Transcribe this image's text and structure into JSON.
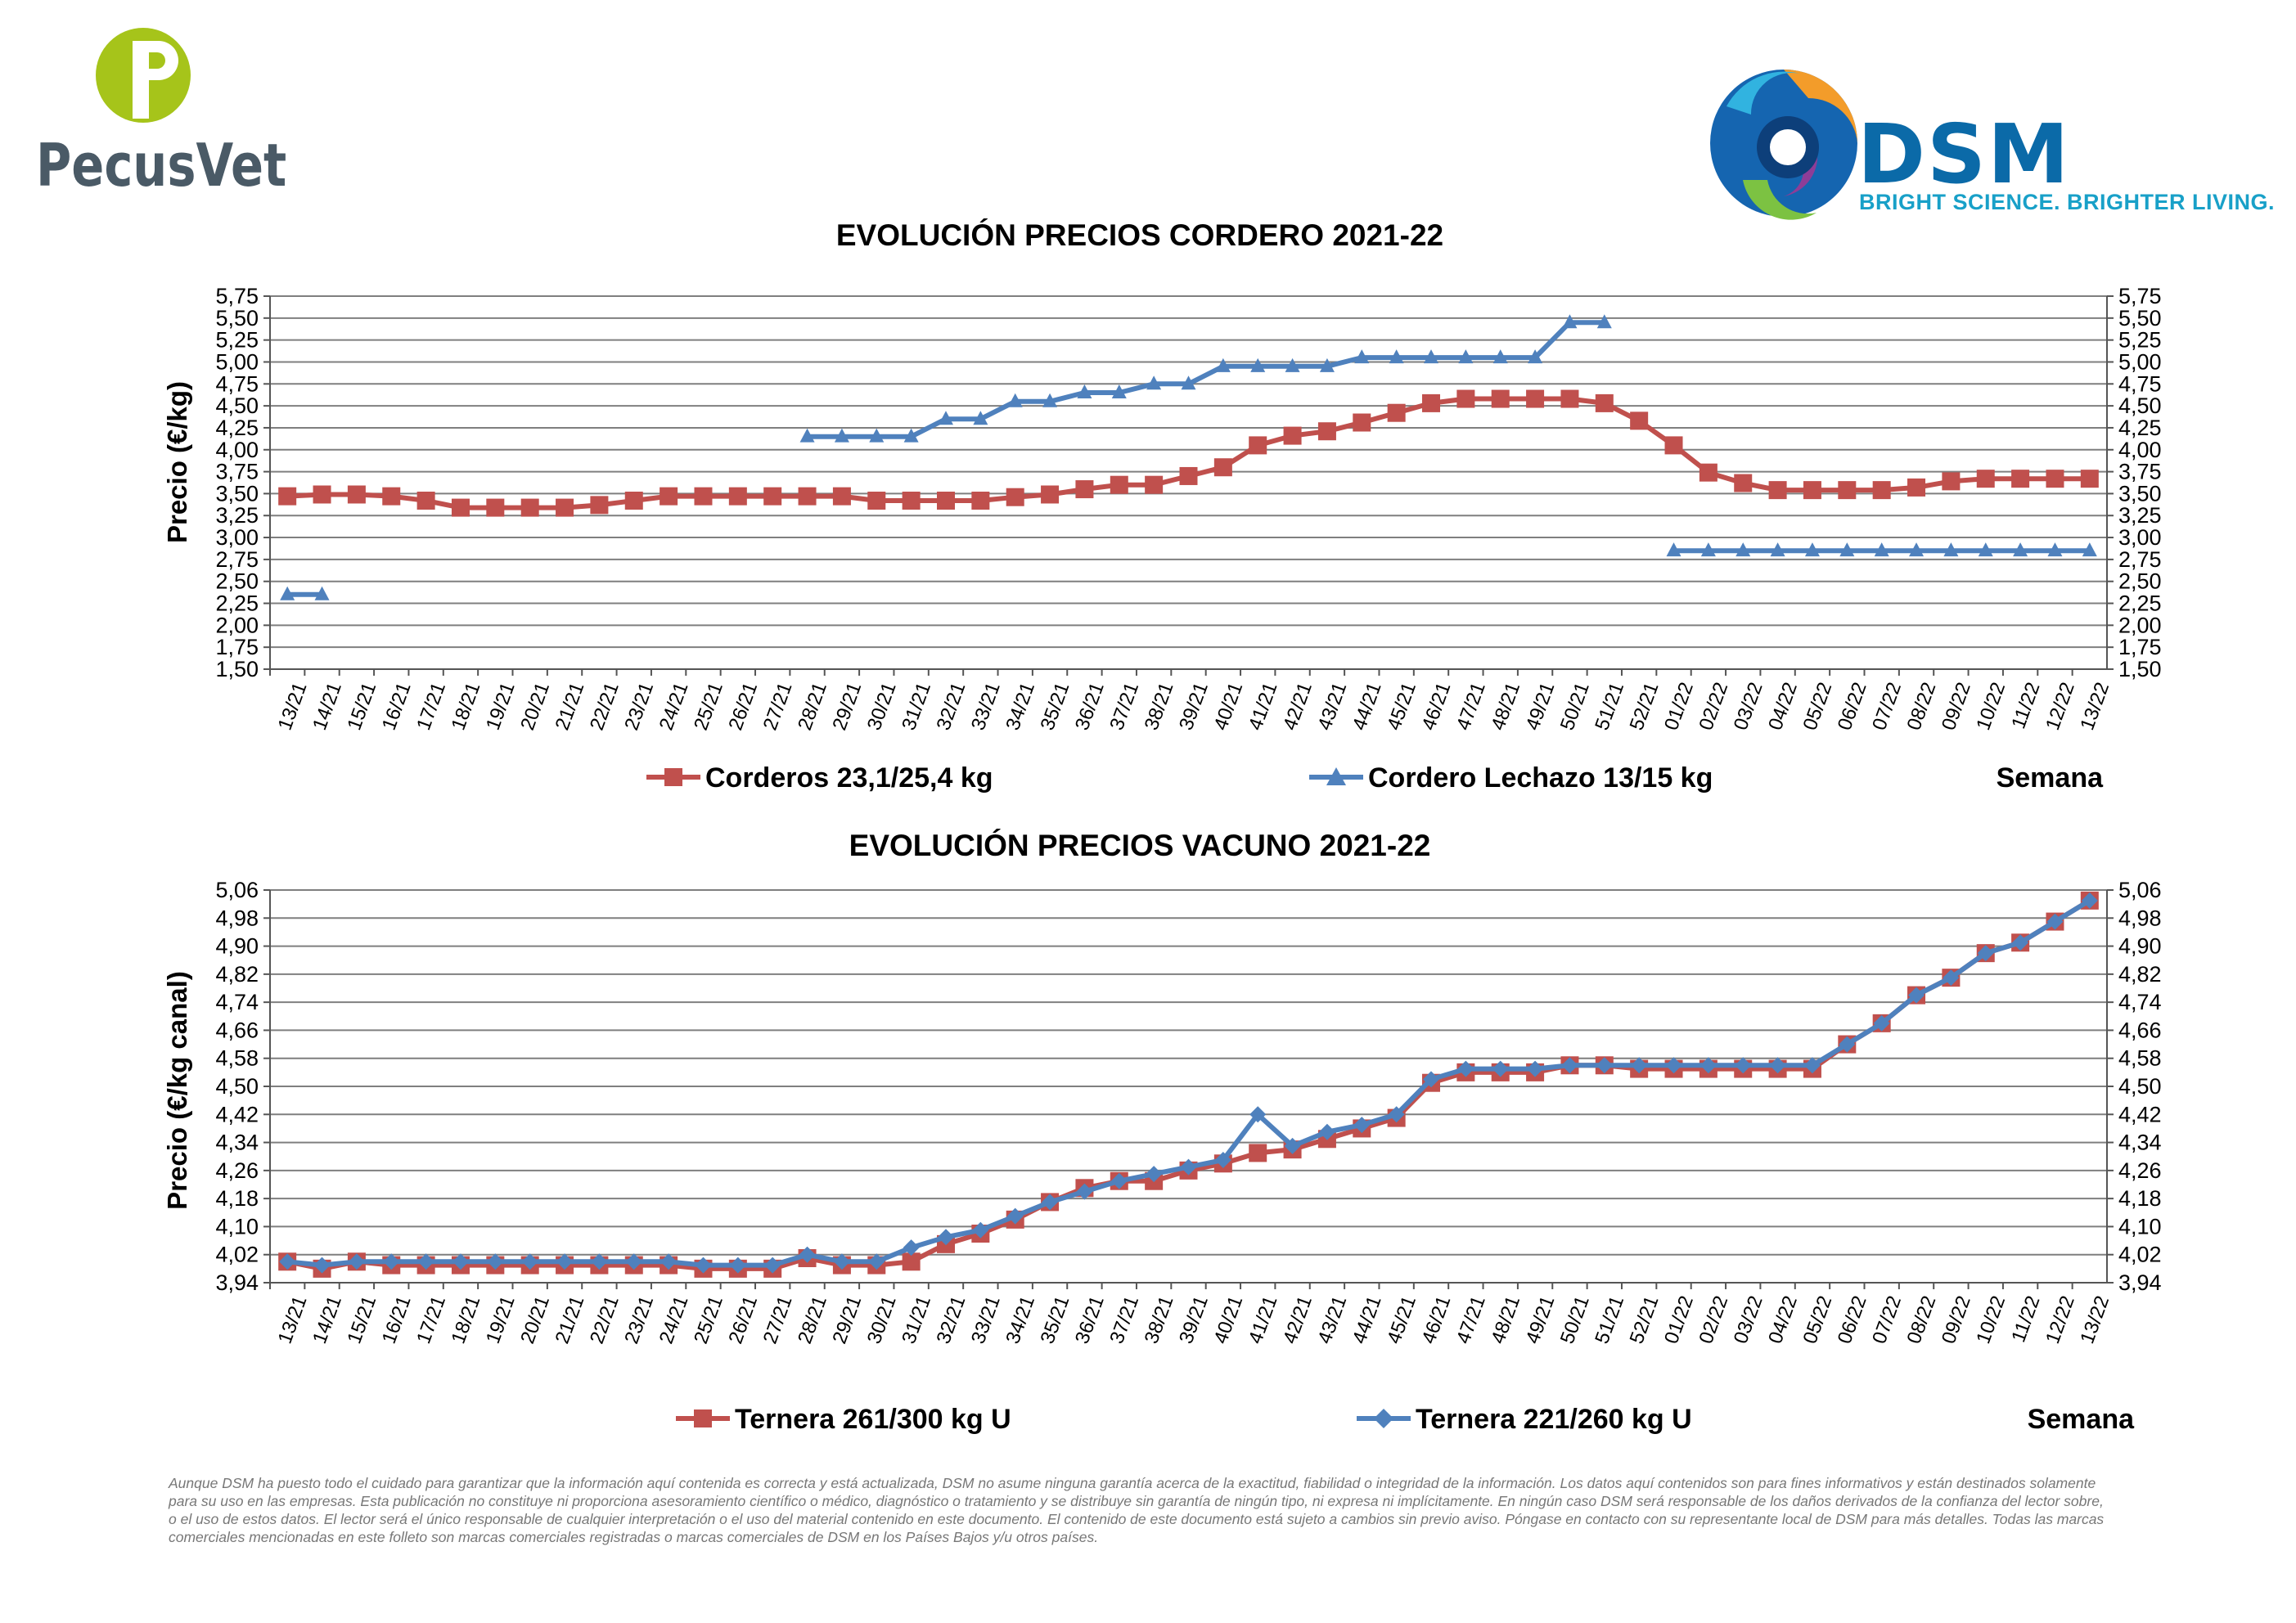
{
  "logos": {
    "left_brand": "PecusVet",
    "right_brand": "DSM",
    "right_tagline": "BRIGHT SCIENCE. BRIGHTER LIVING.",
    "pecus_green": "#a6c41a",
    "dsm_blue": "#0b6aa8"
  },
  "colors": {
    "red_series": "#c0504d",
    "blue_series": "#4f81bd",
    "grid": "#7f7f7f"
  },
  "chart_data": [
    {
      "type": "line",
      "title": "EVOLUCIÓN PRECIOS CORDERO 2021-22",
      "ylabel": "Precio (€/kg)",
      "xlabel": "Semana",
      "ylim": [
        1.5,
        5.75
      ],
      "yticks": [
        "5,75",
        "5,50",
        "5,25",
        "5,00",
        "4,75",
        "4,50",
        "4,25",
        "4,00",
        "3,75",
        "3,50",
        "3,25",
        "3,00",
        "2,75",
        "2,50",
        "2,25",
        "2,00",
        "1,75",
        "1,50"
      ],
      "categories": [
        "13/21",
        "14/21",
        "15/21",
        "16/21",
        "17/21",
        "18/21",
        "19/21",
        "20/21",
        "21/21",
        "22/21",
        "23/21",
        "24/21",
        "25/21",
        "26/21",
        "27/21",
        "28/21",
        "29/21",
        "30/21",
        "31/21",
        "32/21",
        "33/21",
        "34/21",
        "35/21",
        "36/21",
        "37/21",
        "38/21",
        "39/21",
        "40/21",
        "41/21",
        "42/21",
        "43/21",
        "44/21",
        "45/21",
        "46/21",
        "47/21",
        "48/21",
        "49/21",
        "50/21",
        "51/21",
        "52/21",
        "01/22",
        "02/22",
        "03/22",
        "04/22",
        "05/22",
        "06/22",
        "07/22",
        "08/22",
        "09/22",
        "10/22",
        "11/22",
        "12/22",
        "13/22"
      ],
      "grid": true,
      "legend_position": "bottom",
      "series": [
        {
          "name": "Corderos 23,1/25,4 kg",
          "marker": "square",
          "values": [
            3.47,
            3.49,
            3.49,
            3.47,
            3.42,
            3.34,
            3.34,
            3.34,
            3.34,
            3.37,
            3.42,
            3.47,
            3.47,
            3.47,
            3.47,
            3.47,
            3.47,
            3.42,
            3.42,
            3.42,
            3.42,
            3.46,
            3.49,
            3.55,
            3.6,
            3.6,
            3.7,
            3.8,
            4.05,
            4.16,
            4.21,
            4.31,
            4.42,
            4.53,
            4.58,
            4.58,
            4.58,
            4.58,
            4.53,
            4.33,
            4.05,
            3.74,
            3.62,
            3.54,
            3.54,
            3.54,
            3.54,
            3.57,
            3.64,
            3.67,
            3.67,
            3.67,
            3.67
          ]
        },
        {
          "name": "Cordero Lechazo 13/15 kg",
          "marker": "triangle",
          "values": [
            2.35,
            2.35,
            null,
            null,
            null,
            null,
            null,
            null,
            null,
            null,
            null,
            null,
            null,
            null,
            null,
            4.15,
            4.15,
            4.15,
            4.15,
            4.35,
            4.35,
            4.55,
            4.55,
            4.65,
            4.65,
            4.75,
            4.75,
            4.95,
            4.95,
            4.95,
            4.95,
            5.05,
            5.05,
            5.05,
            5.05,
            5.05,
            5.05,
            5.45,
            5.45,
            null,
            2.85,
            2.85,
            2.85,
            2.85,
            2.85,
            2.85,
            2.85,
            2.85,
            2.85,
            2.85,
            2.85,
            2.85,
            2.85
          ]
        }
      ]
    },
    {
      "type": "line",
      "title": "EVOLUCIÓN PRECIOS VACUNO 2021-22",
      "ylabel": "Precio (€/kg canal)",
      "xlabel": "Semana",
      "ylim": [
        3.94,
        5.06
      ],
      "yticks": [
        "5,06",
        "4,98",
        "4,90",
        "4,82",
        "4,74",
        "4,66",
        "4,58",
        "4,50",
        "4,42",
        "4,34",
        "4,26",
        "4,18",
        "4,10",
        "4,02",
        "3,94"
      ],
      "categories": [
        "13/21",
        "14/21",
        "15/21",
        "16/21",
        "17/21",
        "18/21",
        "19/21",
        "20/21",
        "21/21",
        "22/21",
        "23/21",
        "24/21",
        "25/21",
        "26/21",
        "27/21",
        "28/21",
        "29/21",
        "30/21",
        "31/21",
        "32/21",
        "33/21",
        "34/21",
        "35/21",
        "36/21",
        "37/21",
        "38/21",
        "39/21",
        "40/21",
        "41/21",
        "42/21",
        "43/21",
        "44/21",
        "45/21",
        "46/21",
        "47/21",
        "48/21",
        "49/21",
        "50/21",
        "51/21",
        "52/21",
        "01/22",
        "02/22",
        "03/22",
        "04/22",
        "05/22",
        "06/22",
        "07/22",
        "08/22",
        "09/22",
        "10/22",
        "11/22",
        "12/22",
        "13/22"
      ],
      "grid": true,
      "legend_position": "bottom",
      "series": [
        {
          "name": "Ternera 261/300 kg U",
          "marker": "square",
          "values": [
            4.0,
            3.98,
            4.0,
            3.99,
            3.99,
            3.99,
            3.99,
            3.99,
            3.99,
            3.99,
            3.99,
            3.99,
            3.98,
            3.98,
            3.98,
            4.01,
            3.99,
            3.99,
            4.0,
            4.05,
            4.08,
            4.12,
            4.17,
            4.21,
            4.23,
            4.23,
            4.26,
            4.28,
            4.31,
            4.32,
            4.35,
            4.38,
            4.41,
            4.51,
            4.54,
            4.54,
            4.54,
            4.56,
            4.56,
            4.55,
            4.55,
            4.55,
            4.55,
            4.55,
            4.55,
            4.62,
            4.68,
            4.76,
            4.81,
            4.88,
            4.91,
            4.97,
            5.03
          ]
        },
        {
          "name": "Ternera 221/260 kg U",
          "marker": "diamond",
          "values": [
            4.0,
            3.99,
            4.0,
            4.0,
            4.0,
            4.0,
            4.0,
            4.0,
            4.0,
            4.0,
            4.0,
            4.0,
            3.99,
            3.99,
            3.99,
            4.02,
            4.0,
            4.0,
            4.04,
            4.07,
            4.09,
            4.13,
            4.17,
            4.2,
            4.23,
            4.25,
            4.27,
            4.29,
            4.42,
            4.33,
            4.37,
            4.39,
            4.42,
            4.52,
            4.55,
            4.55,
            4.55,
            4.56,
            4.56,
            4.56,
            4.56,
            4.56,
            4.56,
            4.56,
            4.56,
            4.62,
            4.68,
            4.76,
            4.81,
            4.88,
            4.91,
            4.97,
            5.03
          ]
        }
      ]
    }
  ],
  "disclaimer": "Aunque DSM ha puesto todo el cuidado para garantizar que la información aquí contenida es correcta y está actualizada, DSM no asume ninguna garantía acerca de la exactitud, fiabilidad o integridad de la información. Los datos aquí contenidos son para fines informativos y están destinados solamente para su uso en las empresas. Esta publicación no constituye ni proporciona asesoramiento científico o médico, diagnóstico o tratamiento y se distribuye sin garantía de ningún tipo, ni expresa ni implícitamente. En ningún caso DSM será responsable de los daños derivados de la confianza del lector sobre, o el uso de estos datos. El lector será el único responsable de cualquier interpretación o el uso del material contenido en este documento. El contenido de este documento está sujeto a cambios sin previo aviso. Póngase en contacto con su representante local de DSM para más detalles. Todas las marcas comerciales mencionadas en este folleto son marcas comerciales registradas o marcas comerciales de DSM en los Países Bajos y/u otros países."
}
